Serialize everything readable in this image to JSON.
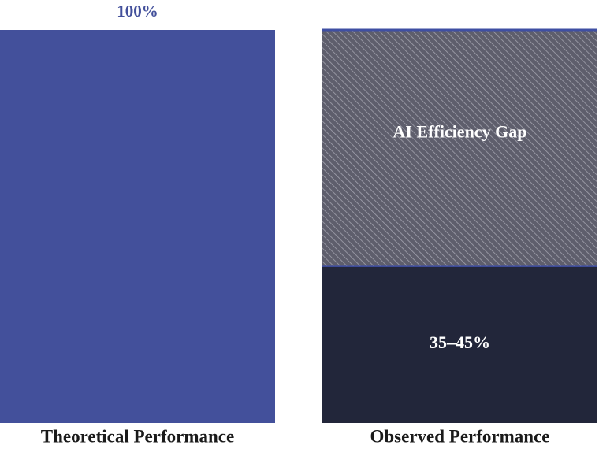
{
  "chart_data": {
    "type": "stacked_bar",
    "categories": [
      "Theoretical Performance",
      "Observed Performance"
    ],
    "series": [
      {
        "color": "#43509b",
        "values": [
          100,
          null
        ],
        "value_labels": [
          "100%",
          null
        ]
      },
      {
        "color": "#22263a",
        "values": [
          null,
          40
        ],
        "value_labels": [
          null,
          "35–45%"
        ]
      },
      {
        "name": "AI Efficiency Gap",
        "color": "#5e5e6c",
        "hatch": true,
        "values": [
          null,
          60
        ]
      }
    ],
    "edge_color": "#3f4fa3"
  }
}
